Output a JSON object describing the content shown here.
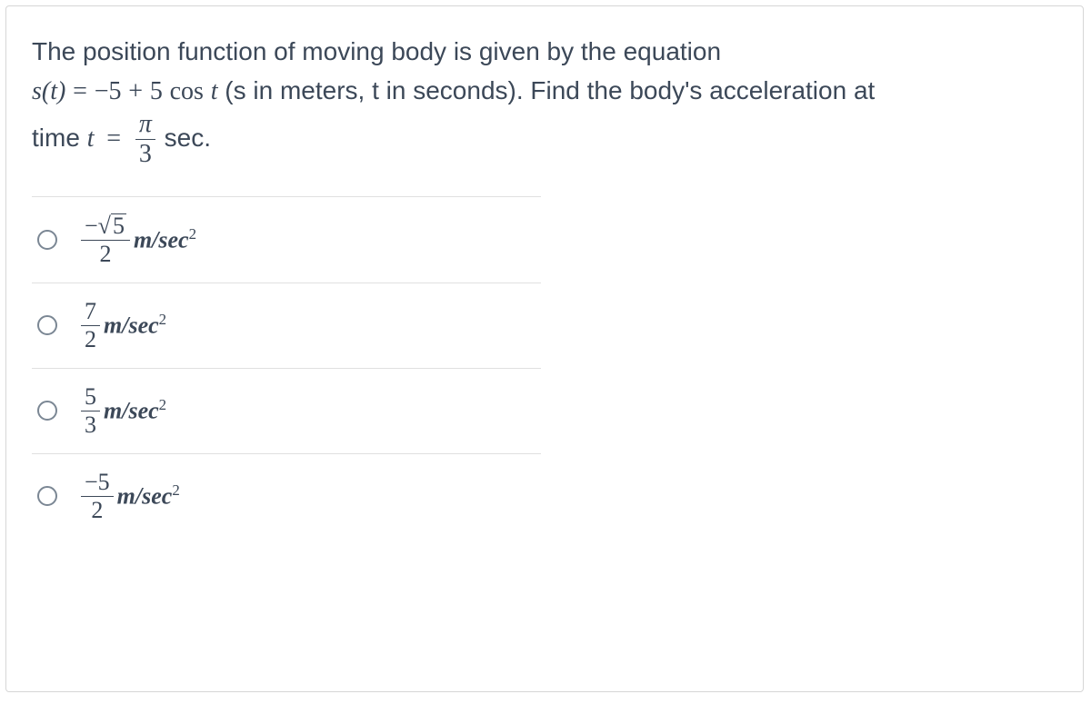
{
  "question": {
    "line1_prefix": "The position function of moving body is given by the equation",
    "func_lhs": "s(t)",
    "equals": "=",
    "minus5": "−5",
    "plus": "+",
    "five": "5",
    "cos": "cos",
    "t": "t",
    "paren_note": " (s in meters, t in seconds). Find the body's acceleration at",
    "time_label": "time ",
    "t2": "t",
    "eq2": "=",
    "pi": "π",
    "three": "3",
    "sec_label": " sec."
  },
  "options": [
    {
      "num_neg": "−",
      "num_sqrt_arg": "5",
      "den": "2",
      "units": "m/sec",
      "exp": "2"
    },
    {
      "num": "7",
      "den": "2",
      "units": "m/sec",
      "exp": "2"
    },
    {
      "num": "5",
      "den": "3",
      "units": "m/sec",
      "exp": "2"
    },
    {
      "num": "−5",
      "den": "2",
      "units": "m/sec",
      "exp": "2"
    }
  ],
  "style": {
    "text_color": "#3c4858",
    "border_color": "#d6d6d6",
    "divider_color": "#e0e0e0",
    "radio_border": "#7b8794",
    "background": "#ffffff",
    "question_fontsize": 28,
    "option_fontsize": 26
  }
}
